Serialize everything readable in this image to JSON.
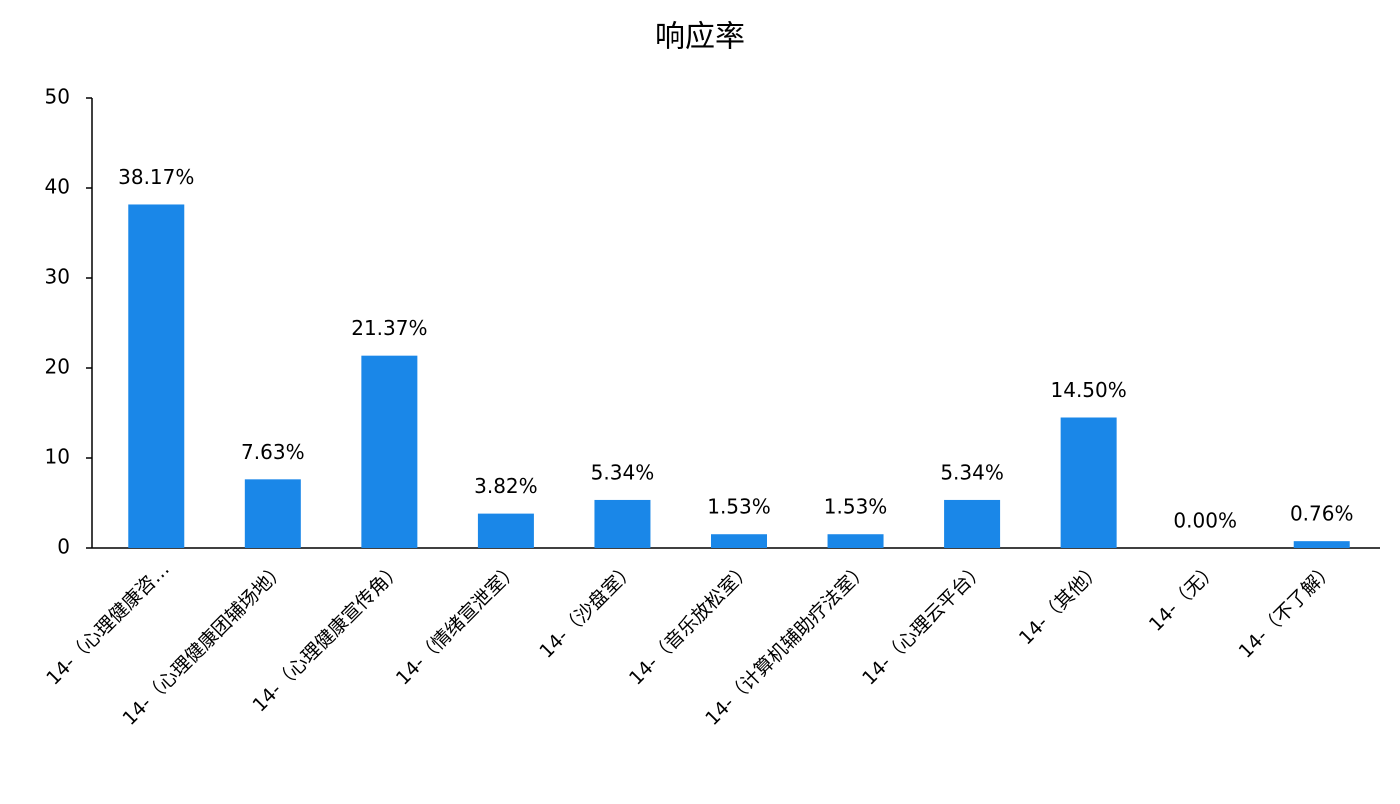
{
  "chart_data": {
    "type": "bar",
    "title": "响应率",
    "categories": [
      "14-（心理健康咨…",
      "14-（心理健康团辅场地）",
      "14-（心理健康宣传角）",
      "14-（情绪宣泄室）",
      "14-（沙盘室）",
      "14-（音乐放松室）",
      "14-（计算机辅助疗法室）",
      "14-（心理云平台）",
      "14-（其他）",
      "14-（无）",
      "14-（不了解）"
    ],
    "values": [
      38.17,
      7.63,
      21.37,
      3.82,
      5.34,
      1.53,
      1.53,
      5.34,
      14.5,
      0,
      0.76
    ],
    "value_labels": [
      "38.17%",
      "7.63%",
      "21.37%",
      "3.82%",
      "5.34%",
      "1.53%",
      "1.53%",
      "5.34%",
      "14.50%",
      "0.00%",
      "0.76%"
    ],
    "color": "#1a87e8",
    "ylim": [
      0,
      50
    ],
    "yticks": [
      0,
      10,
      20,
      30,
      40,
      50
    ],
    "grid": false
  }
}
